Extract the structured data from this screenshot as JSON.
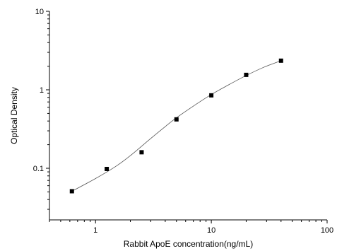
{
  "chart_data": {
    "type": "scatter",
    "title": "",
    "xlabel": "Rabbit ApoE concentration(ng/mL)",
    "ylabel": "Optical Density",
    "x_scale": "log",
    "y_scale": "log",
    "xlim": [
      0.4,
      100
    ],
    "ylim": [
      0.022,
      10
    ],
    "x_ticks": [
      1,
      10,
      100
    ],
    "x_tick_labels": [
      "1",
      "10",
      "100"
    ],
    "y_ticks": [
      0.1,
      1,
      10
    ],
    "y_tick_labels": [
      "0.1",
      "1",
      "10"
    ],
    "grid": false,
    "legend": "none",
    "series": [
      {
        "marker": "square",
        "color": "#000000",
        "points": [
          {
            "x": 0.625,
            "y": 0.051
          },
          {
            "x": 1.25,
            "y": 0.098
          },
          {
            "x": 2.5,
            "y": 0.16
          },
          {
            "x": 5,
            "y": 0.42
          },
          {
            "x": 10,
            "y": 0.85
          },
          {
            "x": 20,
            "y": 1.55
          },
          {
            "x": 40,
            "y": 2.35
          }
        ]
      }
    ],
    "fit_curve": {
      "color": "#555555",
      "points": [
        {
          "x": 0.625,
          "y": 0.051
        },
        {
          "x": 1,
          "y": 0.074
        },
        {
          "x": 1.5,
          "y": 0.106
        },
        {
          "x": 2,
          "y": 0.145
        },
        {
          "x": 3,
          "y": 0.24
        },
        {
          "x": 4,
          "y": 0.34
        },
        {
          "x": 5,
          "y": 0.44
        },
        {
          "x": 7,
          "y": 0.62
        },
        {
          "x": 10,
          "y": 0.87
        },
        {
          "x": 14,
          "y": 1.15
        },
        {
          "x": 20,
          "y": 1.52
        },
        {
          "x": 28,
          "y": 1.92
        },
        {
          "x": 40,
          "y": 2.35
        }
      ]
    }
  }
}
